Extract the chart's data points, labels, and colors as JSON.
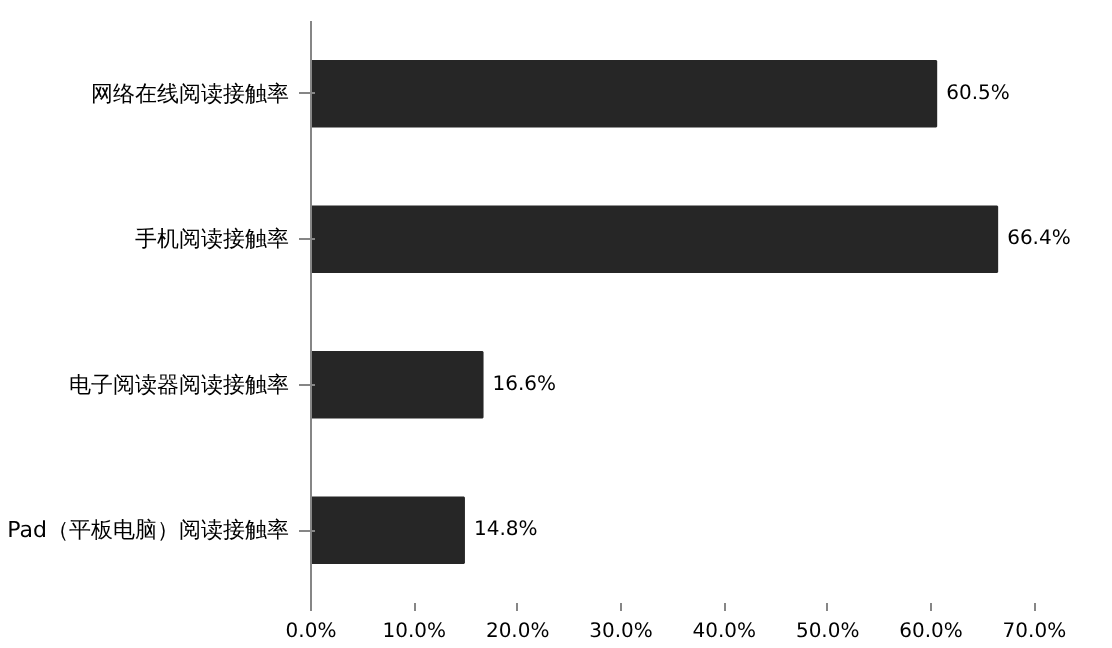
{
  "chart_data": {
    "type": "bar",
    "orientation": "horizontal",
    "categories": [
      "网络在线阅读接触率",
      "手机阅读接触率",
      "电子阅读器阅读接触率",
      "Pad（平板电脑）阅读接触率"
    ],
    "values": [
      60.5,
      66.4,
      16.6,
      14.8
    ],
    "value_labels": [
      "60.5%",
      "66.4%",
      "16.6%",
      "14.8%"
    ],
    "color": "#262626",
    "xlim": [
      0,
      70
    ],
    "xticks": [
      {
        "value": 0,
        "label": "0.0%"
      },
      {
        "value": 10,
        "label": "10.0%"
      },
      {
        "value": 20,
        "label": "20.0%"
      },
      {
        "value": 30,
        "label": "30.0%"
      },
      {
        "value": 40,
        "label": "40.0%"
      },
      {
        "value": 50,
        "label": "50.0%"
      },
      {
        "value": 60,
        "label": "60.0%"
      },
      {
        "value": 70,
        "label": "70.0%"
      }
    ],
    "grid": false
  }
}
